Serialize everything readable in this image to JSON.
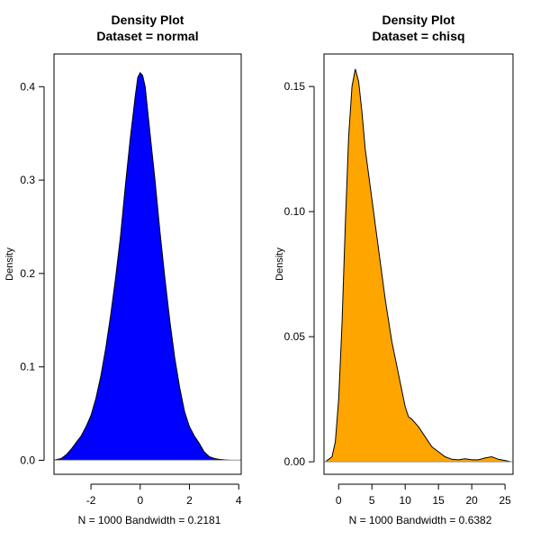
{
  "chart_data": [
    {
      "type": "area",
      "title": "Density Plot",
      "subtitle": "Dataset = normal",
      "xlabel": "N = 1000   Bandwidth = 0.2181",
      "ylabel": "Density",
      "xlim": [
        -3.5,
        4.1
      ],
      "ylim": [
        -0.015,
        0.435
      ],
      "xticks": [
        -2,
        0,
        2,
        4
      ],
      "yticks": [
        0.0,
        0.1,
        0.2,
        0.3,
        0.4
      ],
      "ytick_labels": [
        "0.0",
        "0.1",
        "0.2",
        "0.3",
        "0.4"
      ],
      "fill_color": "#0000ff",
      "grid": false,
      "series": [
        {
          "x": [
            -3.5,
            -3.2,
            -3.0,
            -2.8,
            -2.6,
            -2.4,
            -2.2,
            -2.0,
            -1.8,
            -1.6,
            -1.4,
            -1.2,
            -1.0,
            -0.8,
            -0.6,
            -0.4,
            -0.2,
            -0.1,
            0.0,
            0.1,
            0.2,
            0.4,
            0.6,
            0.8,
            1.0,
            1.2,
            1.4,
            1.6,
            1.8,
            2.0,
            2.2,
            2.4,
            2.6,
            2.8,
            3.0,
            3.2,
            3.4,
            3.6,
            4.1
          ],
          "y": [
            0.0,
            0.002,
            0.006,
            0.012,
            0.019,
            0.026,
            0.036,
            0.048,
            0.066,
            0.09,
            0.12,
            0.155,
            0.195,
            0.24,
            0.295,
            0.345,
            0.39,
            0.41,
            0.415,
            0.412,
            0.4,
            0.35,
            0.3,
            0.245,
            0.195,
            0.15,
            0.11,
            0.078,
            0.052,
            0.036,
            0.026,
            0.018,
            0.009,
            0.004,
            0.002,
            0.001,
            0.0005,
            0.0002,
            0.0
          ]
        }
      ]
    },
    {
      "type": "area",
      "title": "Density Plot",
      "subtitle": "Dataset = chisq",
      "xlabel": "N = 1000   Bandwidth = 0.6382",
      "ylabel": "Density",
      "xlim": [
        -2.2,
        26.2
      ],
      "ylim": [
        -0.005,
        0.163
      ],
      "xticks": [
        0,
        5,
        10,
        15,
        20,
        25
      ],
      "yticks": [
        0.0,
        0.05,
        0.1,
        0.15
      ],
      "ytick_labels": [
        "0.00",
        "0.05",
        "0.10",
        "0.15"
      ],
      "fill_color": "#ffa500",
      "grid": false,
      "series": [
        {
          "x": [
            -2.0,
            -1.0,
            -0.5,
            0.0,
            0.5,
            1.0,
            1.5,
            2.0,
            2.5,
            3.0,
            3.5,
            4.0,
            4.5,
            5.0,
            6.0,
            7.0,
            8.0,
            9.0,
            10.0,
            10.5,
            11.0,
            12.0,
            13.0,
            14.0,
            15.0,
            16.0,
            17.0,
            18.0,
            19.0,
            20.0,
            21.0,
            22.0,
            23.0,
            24.0,
            26.0
          ],
          "y": [
            0.0,
            0.002,
            0.008,
            0.025,
            0.055,
            0.095,
            0.13,
            0.15,
            0.157,
            0.152,
            0.14,
            0.125,
            0.115,
            0.105,
            0.085,
            0.065,
            0.048,
            0.035,
            0.022,
            0.018,
            0.017,
            0.014,
            0.01,
            0.006,
            0.004,
            0.002,
            0.001,
            0.0008,
            0.0012,
            0.0008,
            0.0008,
            0.0015,
            0.002,
            0.001,
            0.0
          ]
        }
      ]
    }
  ]
}
